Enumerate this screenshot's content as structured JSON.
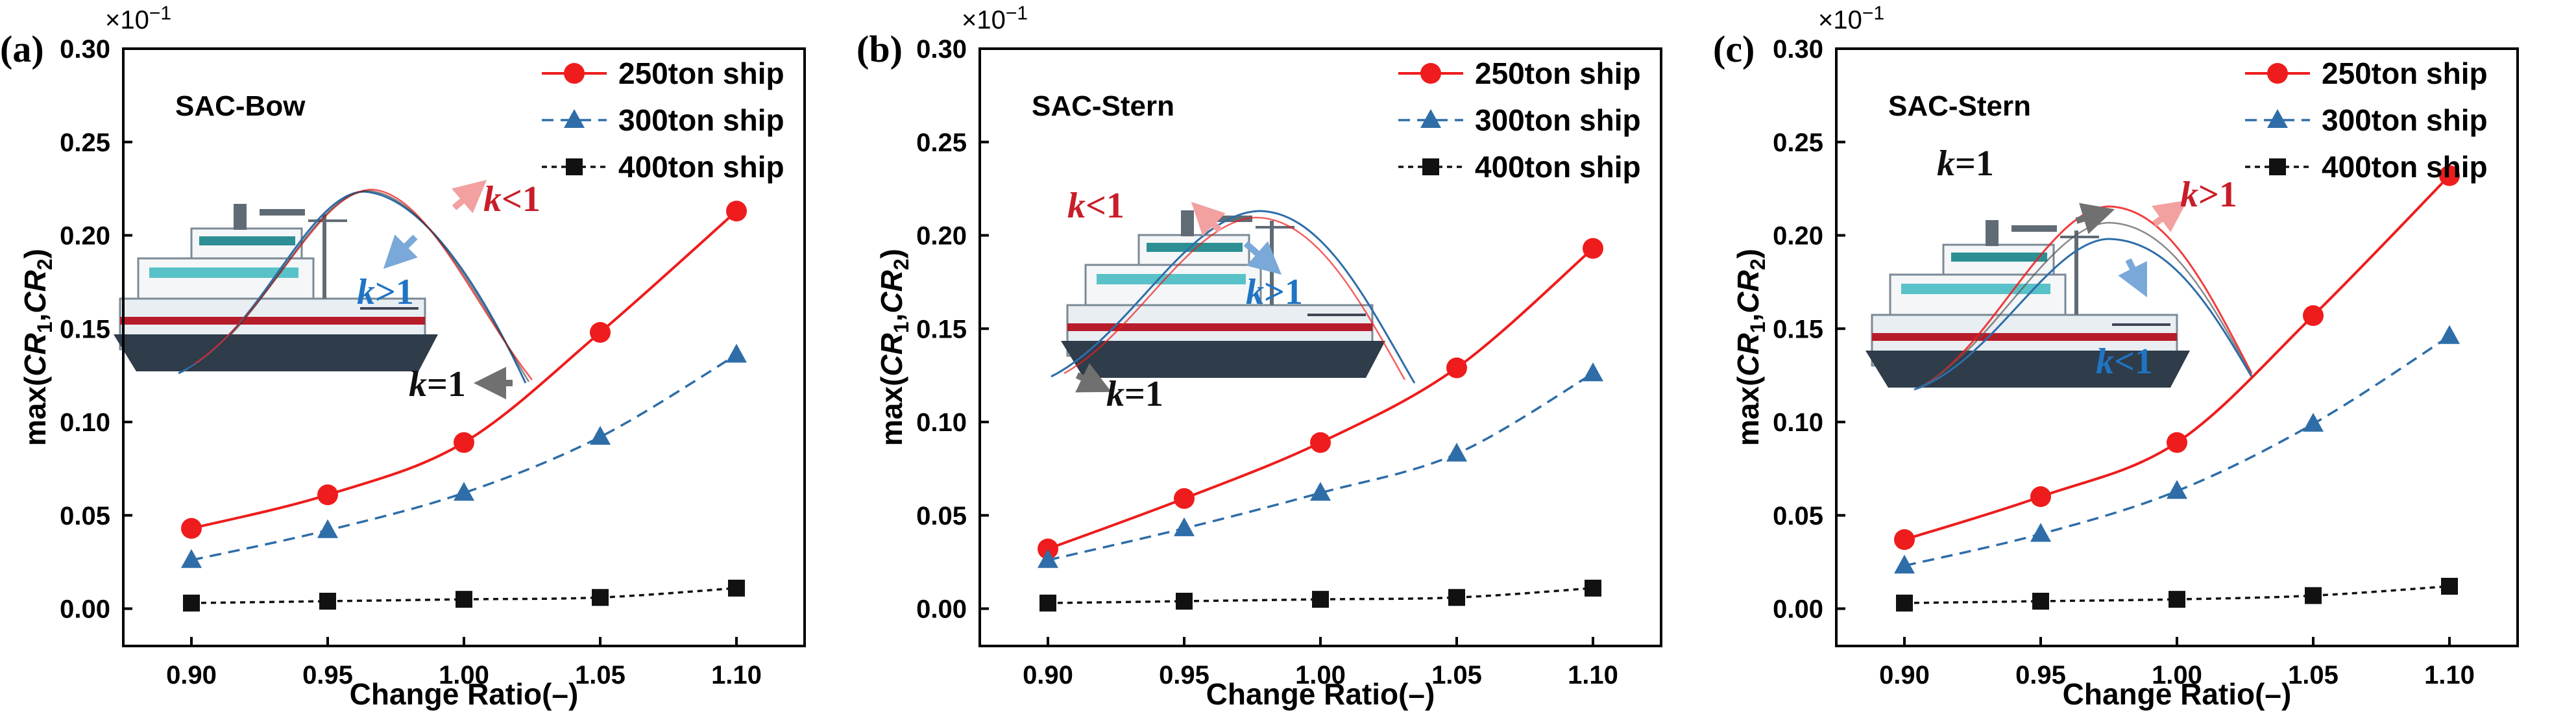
{
  "figure": {
    "common": {
      "xlabel": "Change Ratio(–)",
      "ylabel_prefix": "max(",
      "ylabel_cr": "CR",
      "ylabel_sub1": "1",
      "ylabel_sep": ",",
      "ylabel_sub2": "2",
      "ylabel_suffix": ")",
      "multiplier_base": "×10",
      "multiplier_exp": "−1",
      "k_letter": "k",
      "k_eq": "=1",
      "k_gt": ">1",
      "k_lt": "<1",
      "colors": {
        "s250": "#ee1c1c",
        "s300": "#2e6da8",
        "s400": "#111111",
        "k_red": "#c81e2a",
        "k_blue": "#1f74c4",
        "k_black": "#111111"
      }
    },
    "panels": [
      {
        "letter": "(a)",
        "title": "SAC-Bow"
      },
      {
        "letter": "(b)",
        "title": "SAC-Stern"
      },
      {
        "letter": "(c)",
        "title": "SAC-Stern"
      }
    ]
  },
  "chart_data": [
    {
      "type": "line",
      "title": "SAC-Bow",
      "panel": "(a)",
      "xlabel": "Change Ratio(–)",
      "ylabel": "max(CR1,CR2)",
      "y_multiplier": "×10^-1",
      "x": [
        0.9,
        0.95,
        1.0,
        1.05,
        1.1
      ],
      "xlim": [
        0.875,
        1.125
      ],
      "ylim": [
        -0.02,
        0.3
      ],
      "xticks": [
        "0.90",
        "0.95",
        "1.00",
        "1.05",
        "1.10"
      ],
      "yticks": [
        "0.00",
        "0.05",
        "0.10",
        "0.15",
        "0.20",
        "0.25",
        "0.30"
      ],
      "legend": "top-right",
      "series": [
        {
          "name": "250ton ship",
          "values": [
            0.043,
            0.061,
            0.089,
            0.148,
            0.213
          ]
        },
        {
          "name": "300ton ship",
          "values": [
            0.026,
            0.042,
            0.062,
            0.092,
            0.136
          ]
        },
        {
          "name": "400ton ship",
          "values": [
            0.003,
            0.004,
            0.005,
            0.006,
            0.011
          ]
        }
      ],
      "annotations": [
        "k<1",
        "k>1",
        "k=1"
      ]
    },
    {
      "type": "line",
      "title": "SAC-Stern",
      "panel": "(b)",
      "xlabel": "Change Ratio(–)",
      "ylabel": "max(CR1,CR2)",
      "y_multiplier": "×10^-1",
      "x": [
        0.9,
        0.95,
        1.0,
        1.05,
        1.1
      ],
      "xlim": [
        0.875,
        1.125
      ],
      "ylim": [
        -0.02,
        0.3
      ],
      "xticks": [
        "0.90",
        "0.95",
        "1.00",
        "1.05",
        "1.10"
      ],
      "yticks": [
        "0.00",
        "0.05",
        "0.10",
        "0.15",
        "0.20",
        "0.25",
        "0.30"
      ],
      "legend": "top-right",
      "series": [
        {
          "name": "250ton ship",
          "values": [
            0.032,
            0.059,
            0.089,
            0.129,
            0.193
          ]
        },
        {
          "name": "300ton ship",
          "values": [
            0.026,
            0.043,
            0.062,
            0.083,
            0.126
          ]
        },
        {
          "name": "400ton ship",
          "values": [
            0.003,
            0.004,
            0.005,
            0.006,
            0.011
          ]
        }
      ],
      "annotations": [
        "k<1",
        "k>1",
        "k=1"
      ]
    },
    {
      "type": "line",
      "title": "SAC-Stern",
      "panel": "(c)",
      "xlabel": "Change Ratio(–)",
      "ylabel": "max(CR1,CR2)",
      "y_multiplier": "×10^-1",
      "x": [
        0.9,
        0.95,
        1.0,
        1.05,
        1.1
      ],
      "xlim": [
        0.875,
        1.125
      ],
      "ylim": [
        -0.02,
        0.3
      ],
      "xticks": [
        "0.90",
        "0.95",
        "1.00",
        "1.05",
        "1.10"
      ],
      "yticks": [
        "0.00",
        "0.05",
        "0.10",
        "0.15",
        "0.20",
        "0.25",
        "0.30"
      ],
      "legend": "top-right",
      "series": [
        {
          "name": "250ton ship",
          "values": [
            0.037,
            0.06,
            0.089,
            0.157,
            0.232
          ]
        },
        {
          "name": "300ton ship",
          "values": [
            0.023,
            0.04,
            0.063,
            0.099,
            0.146
          ]
        },
        {
          "name": "400ton ship",
          "values": [
            0.003,
            0.004,
            0.005,
            0.007,
            0.012
          ]
        }
      ],
      "annotations": [
        "k=1",
        "k>1",
        "k<1"
      ]
    }
  ]
}
